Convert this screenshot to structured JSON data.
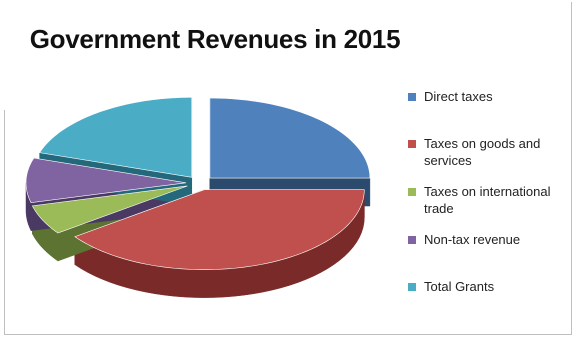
{
  "chart_data": {
    "type": "pie",
    "title": "Government Revenues in 2015",
    "exploded": true,
    "three_d": true,
    "legend_position": "right",
    "slices": [
      {
        "label": "Direct taxes",
        "value": 25,
        "color": "#4f81bd",
        "side": "#2a4a6e"
      },
      {
        "label": "Taxes on goods and services",
        "value": 40,
        "color": "#c0504d",
        "side": "#7a2a28"
      },
      {
        "label": "Taxes on international trade",
        "value": 6,
        "color": "#9bbb59",
        "side": "#5d7331"
      },
      {
        "label": "Non-tax revenue",
        "value": 9,
        "color": "#8064a2",
        "side": "#4a3963"
      },
      {
        "label": "Total Grants",
        "value": 20,
        "color": "#4bacc6",
        "side": "#24697b"
      }
    ]
  }
}
